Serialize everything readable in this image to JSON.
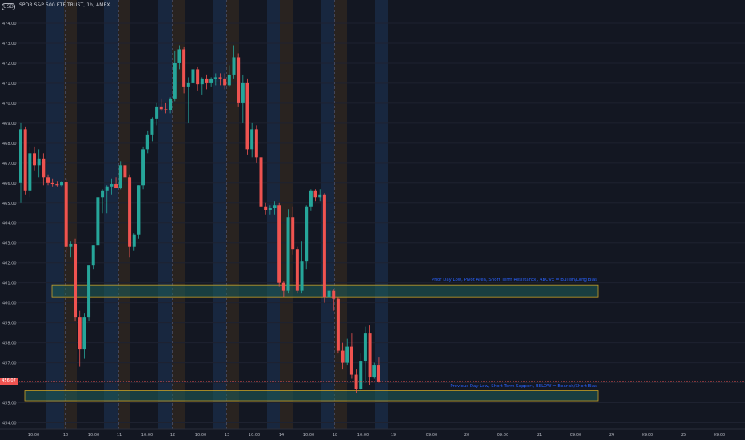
{
  "header": {
    "logo_text": "USD",
    "symbol_title": "SPDR S&P 500 ETF TRUST, 1h, AMEX"
  },
  "price_tag": "456.07",
  "zones": [
    {
      "name": "resistance-zone",
      "label": "Prior Day Low, Pivot Area, Short Term Resistance, ABOVE = Bullish/Long Bias",
      "price_low": 460.3,
      "price_high": 460.9
    },
    {
      "name": "support-zone",
      "label": "Previous Day Low, Short Term Support, BELOW = Bearish/Short Bias",
      "price_low": 455.1,
      "price_high": 455.6
    }
  ],
  "colors": {
    "background": "#131722",
    "up": "#26a69a",
    "down": "#ef5350",
    "zone_fill": "#1f5e5a",
    "zone_border": "#c9a227",
    "label": "#2962ff",
    "axis_text": "#b2b5be",
    "session_blue": "#1a2a44",
    "session_brown": "#2e2620"
  },
  "chart_data": {
    "type": "candlestick",
    "symbol": "SPDR S&P 500 ETF TRUST",
    "interval": "1h",
    "exchange": "AMEX",
    "y_axis": {
      "side": "left",
      "ylim": [
        453.7,
        474.6
      ],
      "ticks": [
        "474.00",
        "473.00",
        "472.00",
        "471.00",
        "470.00",
        "469.00",
        "468.00",
        "467.00",
        "466.00",
        "465.00",
        "464.00",
        "463.00",
        "462.00",
        "461.00",
        "460.00",
        "459.00",
        "458.00",
        "457.00",
        "456.00",
        "455.00",
        "454.00"
      ]
    },
    "x_axis": {
      "ticks": [
        "10:00",
        "10",
        "10:00",
        "11",
        "10:00",
        "12",
        "10:00",
        "13",
        "10:00",
        "14",
        "10:00",
        "18",
        "10:00",
        "19",
        "09:00",
        "20",
        "09:00",
        "21",
        "09:00",
        "24",
        "09:00",
        "25",
        "09:00"
      ]
    },
    "grid": true,
    "candles": [
      {
        "o": 466.0,
        "h": 469.0,
        "l": 465.0,
        "c": 468.7
      },
      {
        "o": 468.7,
        "h": 468.8,
        "l": 465.4,
        "c": 465.6
      },
      {
        "o": 465.6,
        "h": 467.8,
        "l": 465.3,
        "c": 467.5
      },
      {
        "o": 467.5,
        "h": 467.8,
        "l": 466.6,
        "c": 466.9
      },
      {
        "o": 466.9,
        "h": 467.7,
        "l": 466.3,
        "c": 467.2
      },
      {
        "o": 467.2,
        "h": 467.5,
        "l": 465.9,
        "c": 466.3
      },
      {
        "o": 466.3,
        "h": 466.4,
        "l": 465.9,
        "c": 466.0
      },
      {
        "o": 466.0,
        "h": 466.2,
        "l": 465.8,
        "c": 465.95
      },
      {
        "o": 465.95,
        "h": 466.1,
        "l": 465.8,
        "c": 465.9
      },
      {
        "o": 465.9,
        "h": 466.1,
        "l": 465.8,
        "c": 466.05
      },
      {
        "o": 466.05,
        "h": 466.2,
        "l": 462.5,
        "c": 462.8
      },
      {
        "o": 462.8,
        "h": 463.1,
        "l": 462.3,
        "c": 462.95
      },
      {
        "o": 462.95,
        "h": 463.2,
        "l": 459.1,
        "c": 459.3
      },
      {
        "o": 459.3,
        "h": 459.6,
        "l": 456.8,
        "c": 457.7
      },
      {
        "o": 457.7,
        "h": 459.5,
        "l": 457.2,
        "c": 459.3
      },
      {
        "o": 459.3,
        "h": 461.9,
        "l": 459.1,
        "c": 461.9
      },
      {
        "o": 461.9,
        "h": 462.9,
        "l": 461.7,
        "c": 462.9
      },
      {
        "o": 462.9,
        "h": 465.4,
        "l": 462.6,
        "c": 465.3
      },
      {
        "o": 465.3,
        "h": 465.7,
        "l": 464.5,
        "c": 465.6
      },
      {
        "o": 465.6,
        "h": 465.9,
        "l": 464.5,
        "c": 465.8
      },
      {
        "o": 465.8,
        "h": 466.2,
        "l": 465.4,
        "c": 465.95
      },
      {
        "o": 465.95,
        "h": 466.3,
        "l": 465.8,
        "c": 465.75
      },
      {
        "o": 465.75,
        "h": 467.1,
        "l": 465.7,
        "c": 466.9
      },
      {
        "o": 466.9,
        "h": 467.0,
        "l": 466.1,
        "c": 466.3
      },
      {
        "o": 466.3,
        "h": 466.4,
        "l": 462.3,
        "c": 462.8
      },
      {
        "o": 462.8,
        "h": 463.5,
        "l": 462.6,
        "c": 463.4
      },
      {
        "o": 463.4,
        "h": 465.9,
        "l": 463.2,
        "c": 465.9
      },
      {
        "o": 465.9,
        "h": 467.8,
        "l": 465.7,
        "c": 467.7
      },
      {
        "o": 467.7,
        "h": 468.6,
        "l": 467.5,
        "c": 468.4
      },
      {
        "o": 468.4,
        "h": 469.3,
        "l": 468.1,
        "c": 469.2
      },
      {
        "o": 469.2,
        "h": 470.0,
        "l": 468.9,
        "c": 469.8
      },
      {
        "o": 469.8,
        "h": 470.2,
        "l": 469.6,
        "c": 469.7
      },
      {
        "o": 469.7,
        "h": 470.0,
        "l": 469.5,
        "c": 469.65
      },
      {
        "o": 469.65,
        "h": 470.3,
        "l": 469.5,
        "c": 470.2
      },
      {
        "o": 470.2,
        "h": 472.6,
        "l": 470.1,
        "c": 472.0
      },
      {
        "o": 472.0,
        "h": 472.9,
        "l": 471.7,
        "c": 472.7
      },
      {
        "o": 472.7,
        "h": 472.8,
        "l": 470.5,
        "c": 470.8
      },
      {
        "o": 470.8,
        "h": 471.3,
        "l": 469.0,
        "c": 471.0
      },
      {
        "o": 471.0,
        "h": 471.8,
        "l": 470.2,
        "c": 471.7
      },
      {
        "o": 471.7,
        "h": 471.8,
        "l": 470.6,
        "c": 470.95
      },
      {
        "o": 470.95,
        "h": 471.3,
        "l": 470.4,
        "c": 471.2
      },
      {
        "o": 471.2,
        "h": 471.4,
        "l": 470.7,
        "c": 471.0
      },
      {
        "o": 471.0,
        "h": 471.3,
        "l": 470.8,
        "c": 471.2
      },
      {
        "o": 471.2,
        "h": 471.5,
        "l": 470.9,
        "c": 471.3
      },
      {
        "o": 471.3,
        "h": 471.5,
        "l": 470.9,
        "c": 471.2
      },
      {
        "o": 471.2,
        "h": 471.5,
        "l": 470.7,
        "c": 470.9
      },
      {
        "o": 470.9,
        "h": 471.9,
        "l": 470.8,
        "c": 471.4
      },
      {
        "o": 471.4,
        "h": 472.9,
        "l": 471.2,
        "c": 472.3
      },
      {
        "o": 472.3,
        "h": 472.5,
        "l": 469.8,
        "c": 470.0
      },
      {
        "o": 470.0,
        "h": 471.4,
        "l": 469.0,
        "c": 471.0
      },
      {
        "o": 471.0,
        "h": 471.2,
        "l": 467.4,
        "c": 467.7
      },
      {
        "o": 467.7,
        "h": 469.0,
        "l": 467.3,
        "c": 468.7
      },
      {
        "o": 468.7,
        "h": 468.9,
        "l": 467.0,
        "c": 467.3
      },
      {
        "o": 467.3,
        "h": 467.5,
        "l": 464.5,
        "c": 464.8
      },
      {
        "o": 464.8,
        "h": 465.0,
        "l": 464.4,
        "c": 464.65
      },
      {
        "o": 464.65,
        "h": 464.9,
        "l": 464.4,
        "c": 464.75
      },
      {
        "o": 464.75,
        "h": 465.1,
        "l": 464.4,
        "c": 464.9
      },
      {
        "o": 464.9,
        "h": 465.0,
        "l": 460.8,
        "c": 461.0
      },
      {
        "o": 461.0,
        "h": 461.1,
        "l": 460.3,
        "c": 460.6
      },
      {
        "o": 460.6,
        "h": 464.7,
        "l": 460.5,
        "c": 464.3
      },
      {
        "o": 464.3,
        "h": 464.8,
        "l": 462.4,
        "c": 462.7
      },
      {
        "o": 462.7,
        "h": 462.8,
        "l": 460.5,
        "c": 460.6
      },
      {
        "o": 460.6,
        "h": 463.1,
        "l": 460.5,
        "c": 462.1
      },
      {
        "o": 462.1,
        "h": 464.9,
        "l": 461.7,
        "c": 464.8
      },
      {
        "o": 464.8,
        "h": 465.7,
        "l": 464.6,
        "c": 465.6
      },
      {
        "o": 465.6,
        "h": 465.7,
        "l": 465.1,
        "c": 465.3
      },
      {
        "o": 465.3,
        "h": 465.7,
        "l": 465.1,
        "c": 465.4
      },
      {
        "o": 465.4,
        "h": 465.5,
        "l": 460.0,
        "c": 460.3
      },
      {
        "o": 460.3,
        "h": 460.8,
        "l": 460.0,
        "c": 460.6
      },
      {
        "o": 460.6,
        "h": 460.7,
        "l": 459.6,
        "c": 460.2
      },
      {
        "o": 460.2,
        "h": 460.3,
        "l": 457.5,
        "c": 457.6
      },
      {
        "o": 457.6,
        "h": 458.0,
        "l": 456.7,
        "c": 457.0
      },
      {
        "o": 457.0,
        "h": 458.2,
        "l": 456.9,
        "c": 457.8
      },
      {
        "o": 457.8,
        "h": 458.5,
        "l": 456.2,
        "c": 456.4
      },
      {
        "o": 456.4,
        "h": 456.7,
        "l": 455.5,
        "c": 455.7
      },
      {
        "o": 455.7,
        "h": 457.5,
        "l": 455.6,
        "c": 457.1
      },
      {
        "o": 457.1,
        "h": 458.8,
        "l": 456.0,
        "c": 458.5
      },
      {
        "o": 458.5,
        "h": 458.9,
        "l": 455.9,
        "c": 456.3
      },
      {
        "o": 456.3,
        "h": 457.0,
        "l": 456.2,
        "c": 456.9
      },
      {
        "o": 456.9,
        "h": 457.3,
        "l": 456.0,
        "c": 456.07
      }
    ]
  }
}
